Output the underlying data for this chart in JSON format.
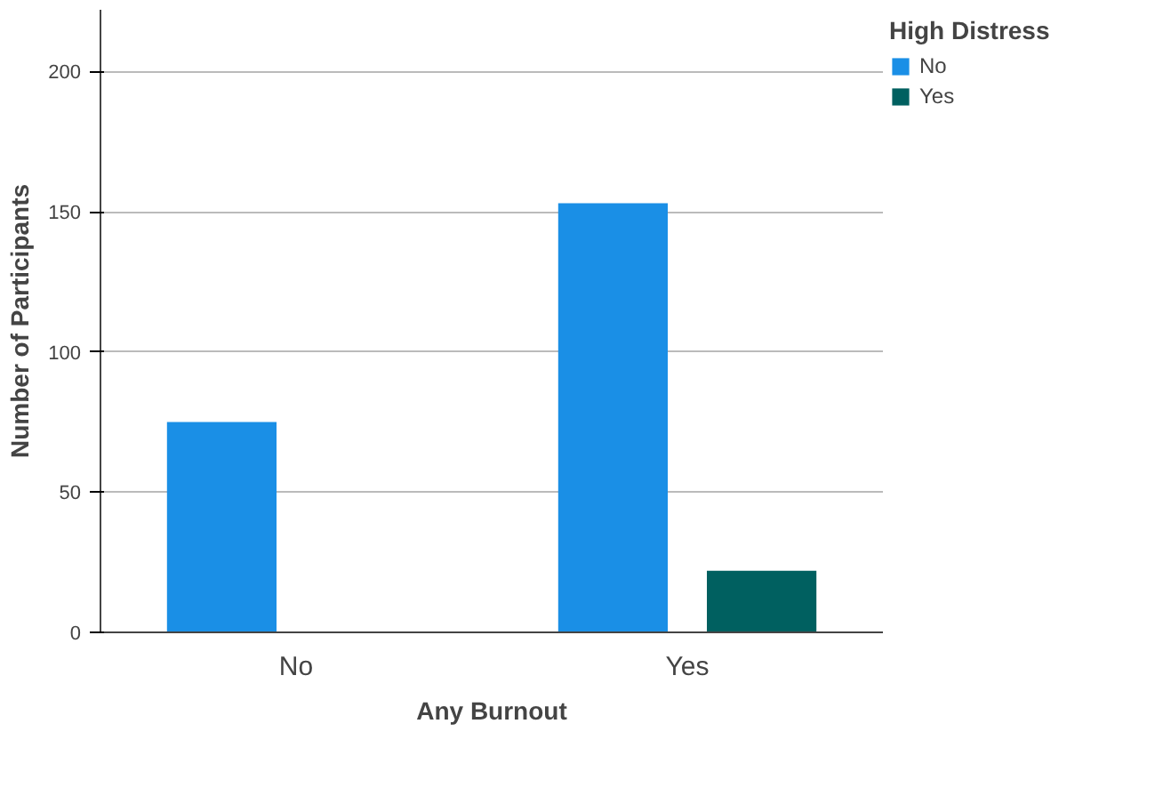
{
  "chart_data": {
    "type": "bar",
    "xlabel": "Any Burnout",
    "ylabel": "Number of Participants",
    "legend_title": "High Distress",
    "categories": [
      "No",
      "Yes"
    ],
    "series": [
      {
        "name": "No",
        "color": "#1a8fe6",
        "values": [
          75,
          153
        ]
      },
      {
        "name": "Yes",
        "color": "#006060",
        "values": [
          0,
          22
        ]
      }
    ],
    "ylim": [
      0,
      222
    ],
    "yticks": [
      0,
      50,
      100,
      150,
      200
    ],
    "grid": "y",
    "legend": "top right"
  }
}
